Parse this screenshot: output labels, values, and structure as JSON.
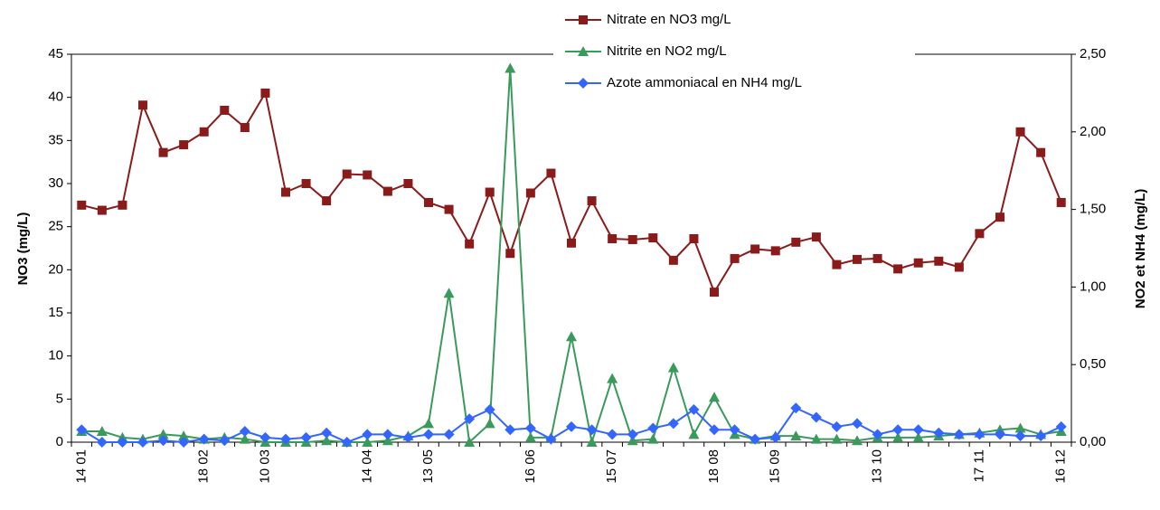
{
  "chart_data": {
    "type": "line",
    "categories": [
      "14 01",
      null,
      null,
      null,
      null,
      null,
      "18 02",
      null,
      null,
      "10 03",
      null,
      null,
      null,
      null,
      "14 04",
      null,
      null,
      "13 05",
      null,
      null,
      null,
      null,
      "16 06",
      null,
      null,
      null,
      "15 07",
      null,
      null,
      null,
      null,
      "18 08",
      null,
      null,
      "15 09",
      null,
      null,
      null,
      null,
      "13 10",
      null,
      null,
      null,
      null,
      "17 11",
      null,
      null,
      null,
      "16 12"
    ],
    "series": [
      {
        "name": "Nitrate en NO3 mg/L",
        "color": "#8b1a1a",
        "marker": "square",
        "values": [
          27.5,
          26.9,
          27.5,
          39.1,
          33.6,
          34.5,
          36.0,
          38.5,
          36.5,
          40.5,
          29.0,
          30.0,
          28.0,
          31.1,
          31.0,
          29.1,
          30.0,
          27.8,
          27.0,
          23.0,
          29.0,
          21.9,
          28.9,
          31.2,
          23.1,
          28.0,
          23.6,
          23.5,
          23.7,
          21.1,
          23.6,
          17.4,
          21.3,
          22.4,
          22.2,
          23.2,
          23.8,
          20.6,
          21.2,
          21.3,
          20.1,
          20.8,
          21.0,
          20.3,
          24.2,
          26.1,
          36.0,
          33.6,
          27.8
        ]
      },
      {
        "name": "Nitrite en NO2 mg/L",
        "color": "#3a9a5c",
        "marker": "triangle",
        "axis": "y2",
        "values": [
          0.07,
          0.07,
          0.03,
          0.02,
          0.05,
          0.04,
          0.02,
          0.03,
          0.02,
          0.0,
          0.0,
          0.0,
          0.01,
          0.0,
          0.0,
          0.01,
          0.04,
          0.12,
          0.96,
          0.0,
          0.12,
          2.41,
          0.03,
          0.03,
          0.68,
          0.0,
          0.41,
          0.01,
          0.02,
          0.48,
          0.05,
          0.29,
          0.05,
          0.02,
          0.04,
          0.04,
          0.02,
          0.02,
          0.01,
          0.03,
          0.03,
          0.03,
          0.04,
          0.05,
          0.06,
          0.08,
          0.09,
          0.05,
          0.07
        ]
      },
      {
        "name": "Azote ammoniacal en NH4 mg/L",
        "color": "#3366ff",
        "marker": "diamond",
        "axis": "y2",
        "values": [
          0.08,
          0.0,
          0.0,
          0.0,
          0.01,
          0.0,
          0.02,
          0.01,
          0.07,
          0.03,
          0.02,
          0.03,
          0.06,
          0.0,
          0.05,
          0.05,
          0.03,
          0.05,
          0.05,
          0.15,
          0.21,
          0.08,
          0.09,
          0.02,
          0.1,
          0.08,
          0.05,
          0.05,
          0.09,
          0.12,
          0.21,
          0.08,
          0.08,
          0.02,
          0.03,
          0.22,
          0.16,
          0.1,
          0.12,
          0.05,
          0.08,
          0.08,
          0.06,
          0.05,
          0.05,
          0.05,
          0.04,
          0.04,
          0.1
        ]
      }
    ],
    "y_label": "NO3 (mg/L)",
    "y2_label": "NO2 et NH4 (mg/L)",
    "ylim": [
      0,
      45
    ],
    "yticks": [
      0,
      5,
      10,
      15,
      20,
      25,
      30,
      35,
      40,
      45
    ],
    "y2lim": [
      0,
      2.5
    ],
    "y2ticks": [
      {
        "value": 0,
        "label": "0,00"
      },
      {
        "value": 0.5,
        "label": "0,50"
      },
      {
        "value": 1,
        "label": "1,00"
      },
      {
        "value": 1.5,
        "label": "1,50"
      },
      {
        "value": 2,
        "label": "2,00"
      },
      {
        "value": 2.5,
        "label": "2,50"
      }
    ],
    "grid": false,
    "legend": "top"
  }
}
